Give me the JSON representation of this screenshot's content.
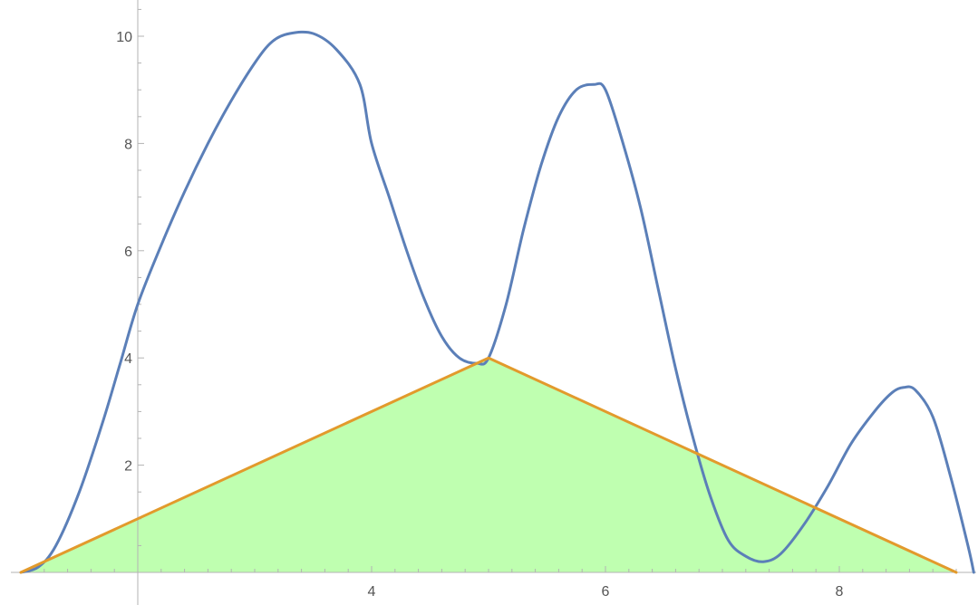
{
  "chart_data": {
    "type": "area",
    "title": "",
    "xlabel": "",
    "ylabel": "",
    "xlim": [
      1,
      9.15
    ],
    "ylim": [
      0,
      10.6
    ],
    "axes_origin": {
      "x": 2,
      "y": 0
    },
    "x_ticks": [
      4,
      6,
      8
    ],
    "y_ticks": [
      2,
      4,
      6,
      8,
      10
    ],
    "grid": false,
    "legend": "none",
    "series": [
      {
        "kind": "line",
        "color": "#5b7fb8",
        "points": [
          [
            1.0,
            0.0
          ],
          [
            1.15,
            0.1
          ],
          [
            1.3,
            0.5
          ],
          [
            1.5,
            1.5
          ],
          [
            1.7,
            2.8
          ],
          [
            1.85,
            3.9
          ],
          [
            2.0,
            5.0
          ],
          [
            2.2,
            6.1
          ],
          [
            2.4,
            7.1
          ],
          [
            2.6,
            8.0
          ],
          [
            2.8,
            8.8
          ],
          [
            3.0,
            9.5
          ],
          [
            3.15,
            9.9
          ],
          [
            3.3,
            10.05
          ],
          [
            3.5,
            10.05
          ],
          [
            3.7,
            9.75
          ],
          [
            3.9,
            9.1
          ],
          [
            4.0,
            8.0
          ],
          [
            4.15,
            7.0
          ],
          [
            4.3,
            6.0
          ],
          [
            4.45,
            5.1
          ],
          [
            4.6,
            4.4
          ],
          [
            4.75,
            4.0
          ],
          [
            4.9,
            3.9
          ],
          [
            5.0,
            4.0
          ],
          [
            5.15,
            5.0
          ],
          [
            5.3,
            6.4
          ],
          [
            5.45,
            7.6
          ],
          [
            5.6,
            8.5
          ],
          [
            5.75,
            9.0
          ],
          [
            5.9,
            9.1
          ],
          [
            6.0,
            9.0
          ],
          [
            6.15,
            8.0
          ],
          [
            6.3,
            6.8
          ],
          [
            6.45,
            5.3
          ],
          [
            6.6,
            3.8
          ],
          [
            6.75,
            2.5
          ],
          [
            6.9,
            1.4
          ],
          [
            7.05,
            0.6
          ],
          [
            7.2,
            0.3
          ],
          [
            7.35,
            0.2
          ],
          [
            7.5,
            0.35
          ],
          [
            7.7,
            0.9
          ],
          [
            7.9,
            1.6
          ],
          [
            8.1,
            2.4
          ],
          [
            8.3,
            3.0
          ],
          [
            8.45,
            3.35
          ],
          [
            8.55,
            3.45
          ],
          [
            8.65,
            3.4
          ],
          [
            8.8,
            2.9
          ],
          [
            8.95,
            1.8
          ],
          [
            9.1,
            0.5
          ],
          [
            9.15,
            0.0
          ]
        ]
      },
      {
        "kind": "line",
        "color": "#e29a2c",
        "points": [
          [
            1.0,
            0.0
          ],
          [
            5.0,
            4.0
          ],
          [
            9.0,
            0.0
          ]
        ]
      },
      {
        "kind": "fill",
        "color": "#bfffb0",
        "points": [
          [
            1.0,
            0.0
          ],
          [
            5.0,
            4.0
          ],
          [
            9.0,
            0.0
          ]
        ]
      }
    ]
  }
}
